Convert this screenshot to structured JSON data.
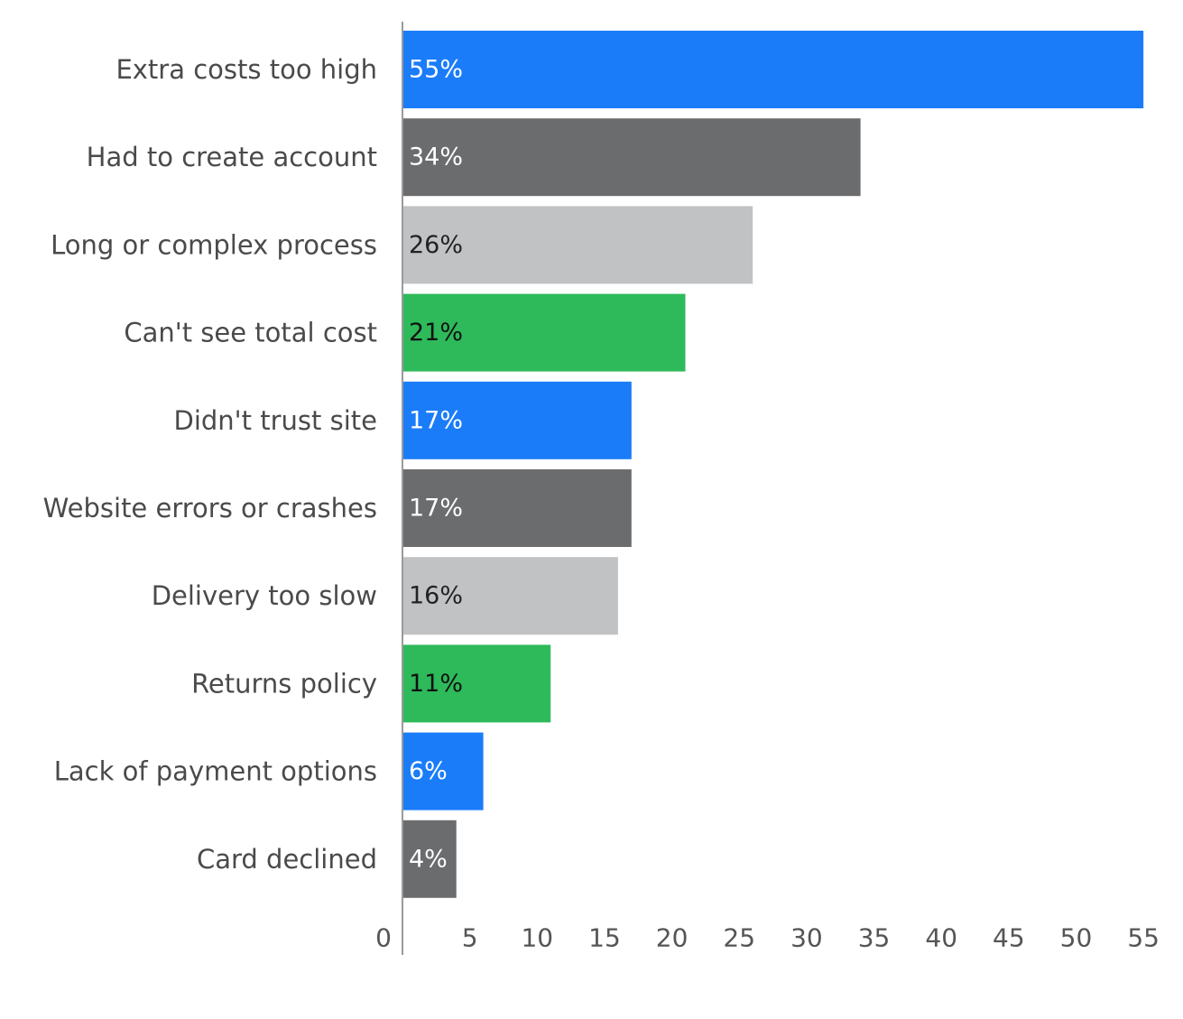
{
  "chart_data": {
    "type": "bar",
    "orientation": "horizontal",
    "title": "",
    "xlabel": "",
    "ylabel": "",
    "categories": [
      "Extra costs too high",
      "Had to create account",
      "Long or complex process",
      "Can't see total cost",
      "Didn't trust site",
      "Website errors or crashes",
      "Delivery too slow",
      "Returns policy",
      "Lack of payment options",
      "Card declined"
    ],
    "values": [
      55,
      34,
      26,
      21,
      17,
      17,
      16,
      11,
      6,
      4
    ],
    "value_labels": [
      "55%",
      "34%",
      "26%",
      "21%",
      "17%",
      "17%",
      "16%",
      "11%",
      "6%",
      "4%"
    ],
    "bar_colors": [
      "#1a7cf9",
      "#6b6c6e",
      "#c0c2c4",
      "#2eba5a",
      "#1a7cf9",
      "#6b6c6e",
      "#c0c2c4",
      "#2eba5a",
      "#1a7cf9",
      "#6b6c6e"
    ],
    "label_colors": [
      "#ffffff",
      "#ffffff",
      "#222222",
      "#111111",
      "#ffffff",
      "#ffffff",
      "#222222",
      "#111111",
      "#ffffff",
      "#ffffff"
    ],
    "xlim": [
      0,
      55
    ],
    "xticks": [
      0,
      5,
      10,
      15,
      20,
      25,
      30,
      35,
      40,
      45,
      50,
      55
    ],
    "tick_labels": [
      "0",
      "5",
      "10",
      "15",
      "20",
      "25",
      "30",
      "35",
      "40",
      "45",
      "50",
      "55"
    ],
    "grid": false,
    "legend": "none",
    "axis_color": "#9a9a9a"
  }
}
